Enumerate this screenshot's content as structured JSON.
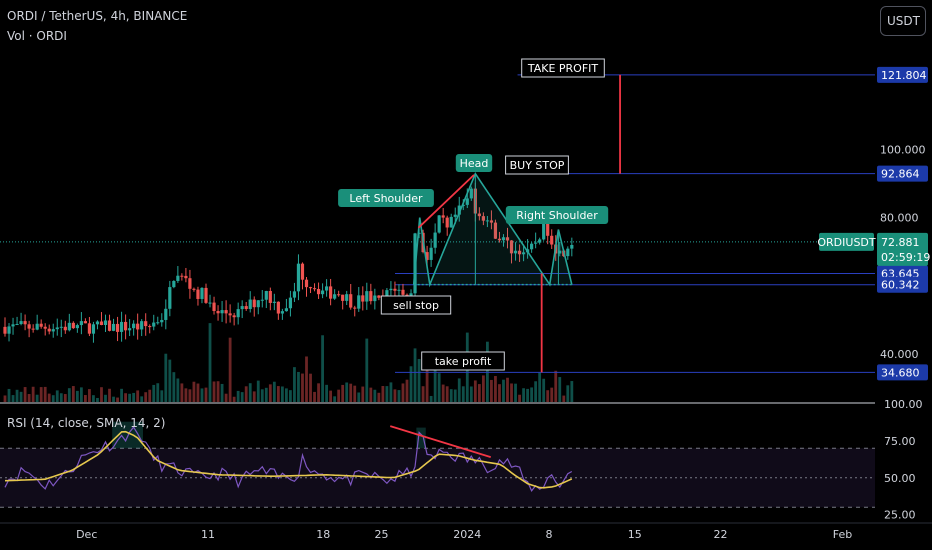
{
  "header": {
    "symbol_title": "ORDI / TetherUS, 4h, BINANCE",
    "vol_label": "Vol · ORDI",
    "rsi_title": "RSI (14, close, SMA, 14, 2)",
    "currency_button": "USDT"
  },
  "colors": {
    "background": "#000000",
    "up_candle": "#26a69a",
    "down_candle": "#ef5350",
    "level_line": "#2a3fbf",
    "pattern_line": "#26a69a",
    "trend_line": "#f23645",
    "rsi_line": "#7e57c2",
    "rsi_sma": "#e6c84e"
  },
  "chart_data": [
    {
      "type": "candlestick",
      "symbol": "ORDIUSDT",
      "ylim": [
        26,
        132
      ],
      "y_ticks": [
        "100.000",
        "80.000",
        "40.000"
      ],
      "x_ticks": [
        "Dec",
        "11",
        "18",
        "25",
        "2024",
        "8",
        "15",
        "22",
        "Feb"
      ],
      "last_price": {
        "label": "ORDIUSDT",
        "value": "72.881",
        "countdown": "02:59:19"
      },
      "price_levels": [
        {
          "value": 121.804,
          "label": "121.804"
        },
        {
          "value": 92.864,
          "label": "92.864"
        },
        {
          "value": 63.645,
          "label": "63.645"
        },
        {
          "value": 60.342,
          "label": "60.342"
        },
        {
          "value": 34.68,
          "label": "34.680"
        }
      ],
      "annotations": [
        {
          "text": "Left Shoulder"
        },
        {
          "text": "Head"
        },
        {
          "text": "Right Shoulder"
        },
        {
          "text": "BUY STOP"
        },
        {
          "text": "TAKE PROFIT"
        },
        {
          "text": "sell stop"
        },
        {
          "text": "take profit"
        }
      ],
      "anchors": [
        {
          "t": 22.0,
          "v": 48
        },
        {
          "t": 24.6,
          "v": 52
        },
        {
          "t": 25.6,
          "v": 63
        },
        {
          "t": 27.4,
          "v": 62
        },
        {
          "t": 29.2,
          "v": 58
        },
        {
          "t": 30.6,
          "v": 57
        },
        {
          "t": 31.6,
          "v": 52
        },
        {
          "t": 33.6,
          "v": 52
        },
        {
          "t": 35.6,
          "v": 52
        },
        {
          "t": 37.6,
          "v": 55
        },
        {
          "t": 39.6,
          "v": 58
        },
        {
          "t": 41.6,
          "v": 53
        },
        {
          "t": 43.6,
          "v": 56
        },
        {
          "t": 44.6,
          "v": 68
        },
        {
          "t": 45.1,
          "v": 62
        },
        {
          "t": 46.6,
          "v": 60
        },
        {
          "t": 48.6,
          "v": 58
        },
        {
          "t": 50.6,
          "v": 58
        },
        {
          "t": 52.6,
          "v": 55
        },
        {
          "t": 54.6,
          "v": 57
        },
        {
          "t": 56.6,
          "v": 55
        },
        {
          "t": 58.6,
          "v": 60
        },
        {
          "t": 59.6,
          "v": 58
        },
        {
          "t": 60.8,
          "v": 55
        },
        {
          "t": 61.1,
          "v": 54
        },
        {
          "t": 61.9,
          "v": 80
        },
        {
          "t": 62.4,
          "v": 75
        },
        {
          "t": 63.4,
          "v": 68
        },
        {
          "t": 64.4,
          "v": 72
        },
        {
          "t": 65.6,
          "v": 80
        },
        {
          "t": 66.6,
          "v": 76
        },
        {
          "t": 67.6,
          "v": 80
        },
        {
          "t": 68.6,
          "v": 82
        },
        {
          "t": 69.6,
          "v": 85
        },
        {
          "t": 70.2,
          "v": 88
        },
        {
          "t": 70.7,
          "v": 84
        },
        {
          "t": 71.1,
          "v": 80
        },
        {
          "t": 71.6,
          "v": 82
        },
        {
          "t": 73.6,
          "v": 76
        },
        {
          "t": 75.6,
          "v": 72
        },
        {
          "t": 76.6,
          "v": 70
        },
        {
          "t": 77.6,
          "v": 71
        },
        {
          "t": 78.6,
          "v": 69
        },
        {
          "t": 79.6,
          "v": 72
        },
        {
          "t": 80.6,
          "v": 76
        },
        {
          "t": 81.3,
          "v": 78
        },
        {
          "t": 82.6,
          "v": 72
        },
        {
          "t": 83.6,
          "v": 69
        },
        {
          "t": 84.3,
          "v": 72
        },
        {
          "t": 85.0,
          "v": 73
        }
      ],
      "volume": {
        "label": "Vol · ORDI"
      }
    },
    {
      "type": "line",
      "title": "RSI (14, close, SMA, 14, 2)",
      "ylim": [
        20,
        100
      ],
      "y_ticks": [
        "100.00",
        "75.00",
        "50.00",
        "25.00"
      ],
      "bands": [
        30,
        70
      ],
      "rsi_anchors": [
        {
          "t": 0,
          "v": 48
        },
        {
          "t": 3,
          "v": 55
        },
        {
          "t": 6,
          "v": 45
        },
        {
          "t": 9,
          "v": 52
        },
        {
          "t": 11,
          "v": 62
        },
        {
          "t": 14,
          "v": 70
        },
        {
          "t": 17,
          "v": 75
        },
        {
          "t": 18.6,
          "v": 82
        },
        {
          "t": 20.6,
          "v": 78
        },
        {
          "t": 21.6,
          "v": 66
        },
        {
          "t": 23.6,
          "v": 58
        },
        {
          "t": 26,
          "v": 55
        },
        {
          "t": 29,
          "v": 50
        },
        {
          "t": 32,
          "v": 53
        },
        {
          "t": 35,
          "v": 48
        },
        {
          "t": 38,
          "v": 55
        },
        {
          "t": 41,
          "v": 50
        },
        {
          "t": 43.6,
          "v": 52
        },
        {
          "t": 44.6,
          "v": 65
        },
        {
          "t": 45.6,
          "v": 55
        },
        {
          "t": 48,
          "v": 52
        },
        {
          "t": 51,
          "v": 48
        },
        {
          "t": 54,
          "v": 52
        },
        {
          "t": 57,
          "v": 48
        },
        {
          "t": 59.6,
          "v": 52
        },
        {
          "t": 61,
          "v": 55
        },
        {
          "t": 62,
          "v": 82
        },
        {
          "t": 63.4,
          "v": 62
        },
        {
          "t": 65.6,
          "v": 68
        },
        {
          "t": 67.6,
          "v": 64
        },
        {
          "t": 70,
          "v": 62
        },
        {
          "t": 72,
          "v": 58
        },
        {
          "t": 74,
          "v": 62
        },
        {
          "t": 76,
          "v": 58
        },
        {
          "t": 78,
          "v": 45
        },
        {
          "t": 80,
          "v": 42
        },
        {
          "t": 81.3,
          "v": 55
        },
        {
          "t": 82.6,
          "v": 42
        },
        {
          "t": 83.6,
          "v": 52
        },
        {
          "t": 85,
          "v": 55
        }
      ],
      "sma_anchors": [
        {
          "t": 0,
          "v": 48
        },
        {
          "t": 6,
          "v": 49
        },
        {
          "t": 10,
          "v": 55
        },
        {
          "t": 14,
          "v": 66
        },
        {
          "t": 17.6,
          "v": 82
        },
        {
          "t": 19.6,
          "v": 78
        },
        {
          "t": 22.6,
          "v": 62
        },
        {
          "t": 26,
          "v": 55
        },
        {
          "t": 32,
          "v": 52
        },
        {
          "t": 40,
          "v": 51
        },
        {
          "t": 48,
          "v": 52
        },
        {
          "t": 58,
          "v": 50
        },
        {
          "t": 61.6,
          "v": 55
        },
        {
          "t": 64.6,
          "v": 66
        },
        {
          "t": 67.6,
          "v": 65
        },
        {
          "t": 70,
          "v": 62
        },
        {
          "t": 74,
          "v": 59
        },
        {
          "t": 76,
          "v": 52
        },
        {
          "t": 78,
          "v": 46
        },
        {
          "t": 80,
          "v": 43
        },
        {
          "t": 82,
          "v": 44
        },
        {
          "t": 85,
          "v": 50
        }
      ],
      "divergence_line": true
    }
  ]
}
